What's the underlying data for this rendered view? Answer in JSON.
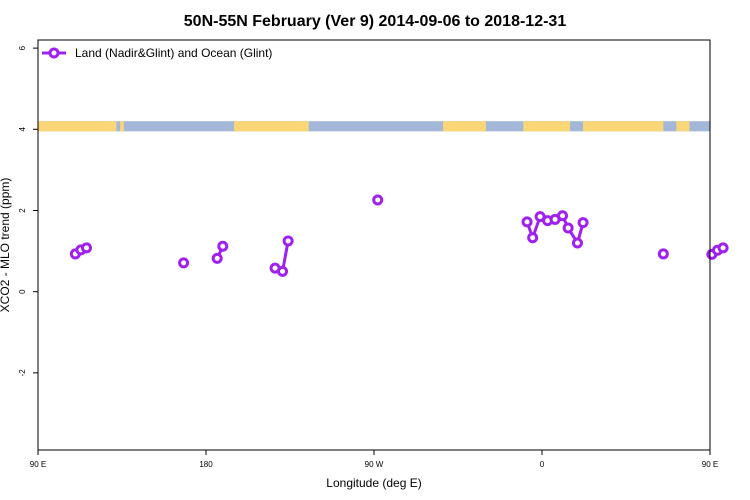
{
  "chart_data": {
    "type": "line",
    "title": "50N-55N February (Ver 9)   2014-09-06 to 2018-12-31",
    "xlabel": "Longitude (deg E)",
    "ylabel": "XCO2 - MLO trend (ppm)",
    "xlim": [
      90,
      450
    ],
    "ylim": [
      -3.9,
      6.2
    ],
    "x_ticks": [
      {
        "value": 90,
        "label": "90 E"
      },
      {
        "value": 180,
        "label": "180"
      },
      {
        "value": 270,
        "label": "90 W"
      },
      {
        "value": 360,
        "label": "0"
      },
      {
        "value": 450,
        "label": "90 E"
      },
      {
        "value": 540,
        "label": "180"
      }
    ],
    "y_ticks": [
      {
        "value": 6,
        "label": "6"
      },
      {
        "value": 4,
        "label": "4"
      },
      {
        "value": 2,
        "label": "2"
      },
      {
        "value": 0,
        "label": "0"
      },
      {
        "value": -2,
        "label": "-2"
      }
    ],
    "legend": {
      "position": "top-left",
      "entries": [
        {
          "label": "Land (Nadir&Glint) and Ocean (Glint)",
          "color": "#a020f0"
        }
      ]
    },
    "series": [
      {
        "name": "Land (Nadir&Glint) and Ocean (Glint)",
        "color": "#a020f0",
        "segments": [
          [
            [
              110,
              0.93
            ],
            [
              113,
              1.03
            ],
            [
              116,
              1.08
            ]
          ],
          [
            [
              168,
              0.71
            ]
          ],
          [
            [
              186,
              0.82
            ],
            [
              189,
              1.12
            ]
          ],
          [
            [
              217,
              0.58
            ],
            [
              221,
              0.5
            ],
            [
              224,
              1.25
            ]
          ],
          [
            [
              272,
              2.26
            ]
          ],
          [
            [
              352,
              1.72
            ],
            [
              355,
              1.33
            ],
            [
              359,
              1.85
            ],
            [
              363,
              1.75
            ],
            [
              367,
              1.78
            ],
            [
              371,
              1.87
            ],
            [
              374,
              1.57
            ],
            [
              379,
              1.2
            ],
            [
              382,
              1.7
            ]
          ],
          [
            [
              425,
              0.93
            ]
          ],
          [
            [
              451,
              0.92
            ],
            [
              454,
              1.02
            ],
            [
              457,
              1.08
            ]
          ]
        ]
      }
    ],
    "map_strip": {
      "y_range": [
        3.95,
        4.2
      ],
      "ocean_color": "#a3b8d8",
      "land_color": "#fad676",
      "land_bands": [
        [
          90,
          132
        ],
        [
          134,
          136
        ],
        [
          195,
          235
        ],
        [
          307,
          330
        ],
        [
          350,
          375
        ],
        [
          382,
          385
        ],
        [
          385,
          425
        ],
        [
          432,
          439
        ]
      ]
    }
  }
}
